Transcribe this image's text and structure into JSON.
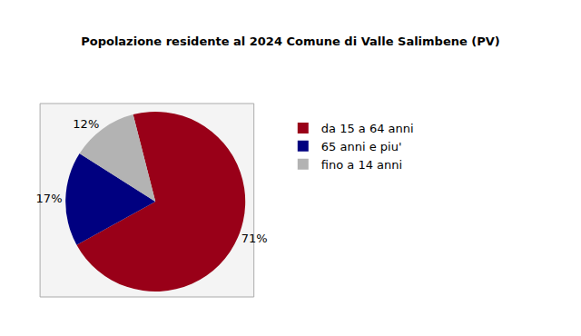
{
  "chart_data": {
    "type": "pie",
    "title": "Popolazione residente al 2024 Comune di Valle Salimbene (PV)",
    "categories": [
      "da 15 a 64 anni",
      "65 anni e piu'",
      "fino a 14 anni"
    ],
    "values": [
      71,
      17,
      12
    ],
    "value_labels": [
      "71%",
      "17%",
      "12%"
    ],
    "colors": [
      "#990018",
      "#000080",
      "#b3b3b3"
    ],
    "data_labels": true,
    "legend": "right"
  }
}
